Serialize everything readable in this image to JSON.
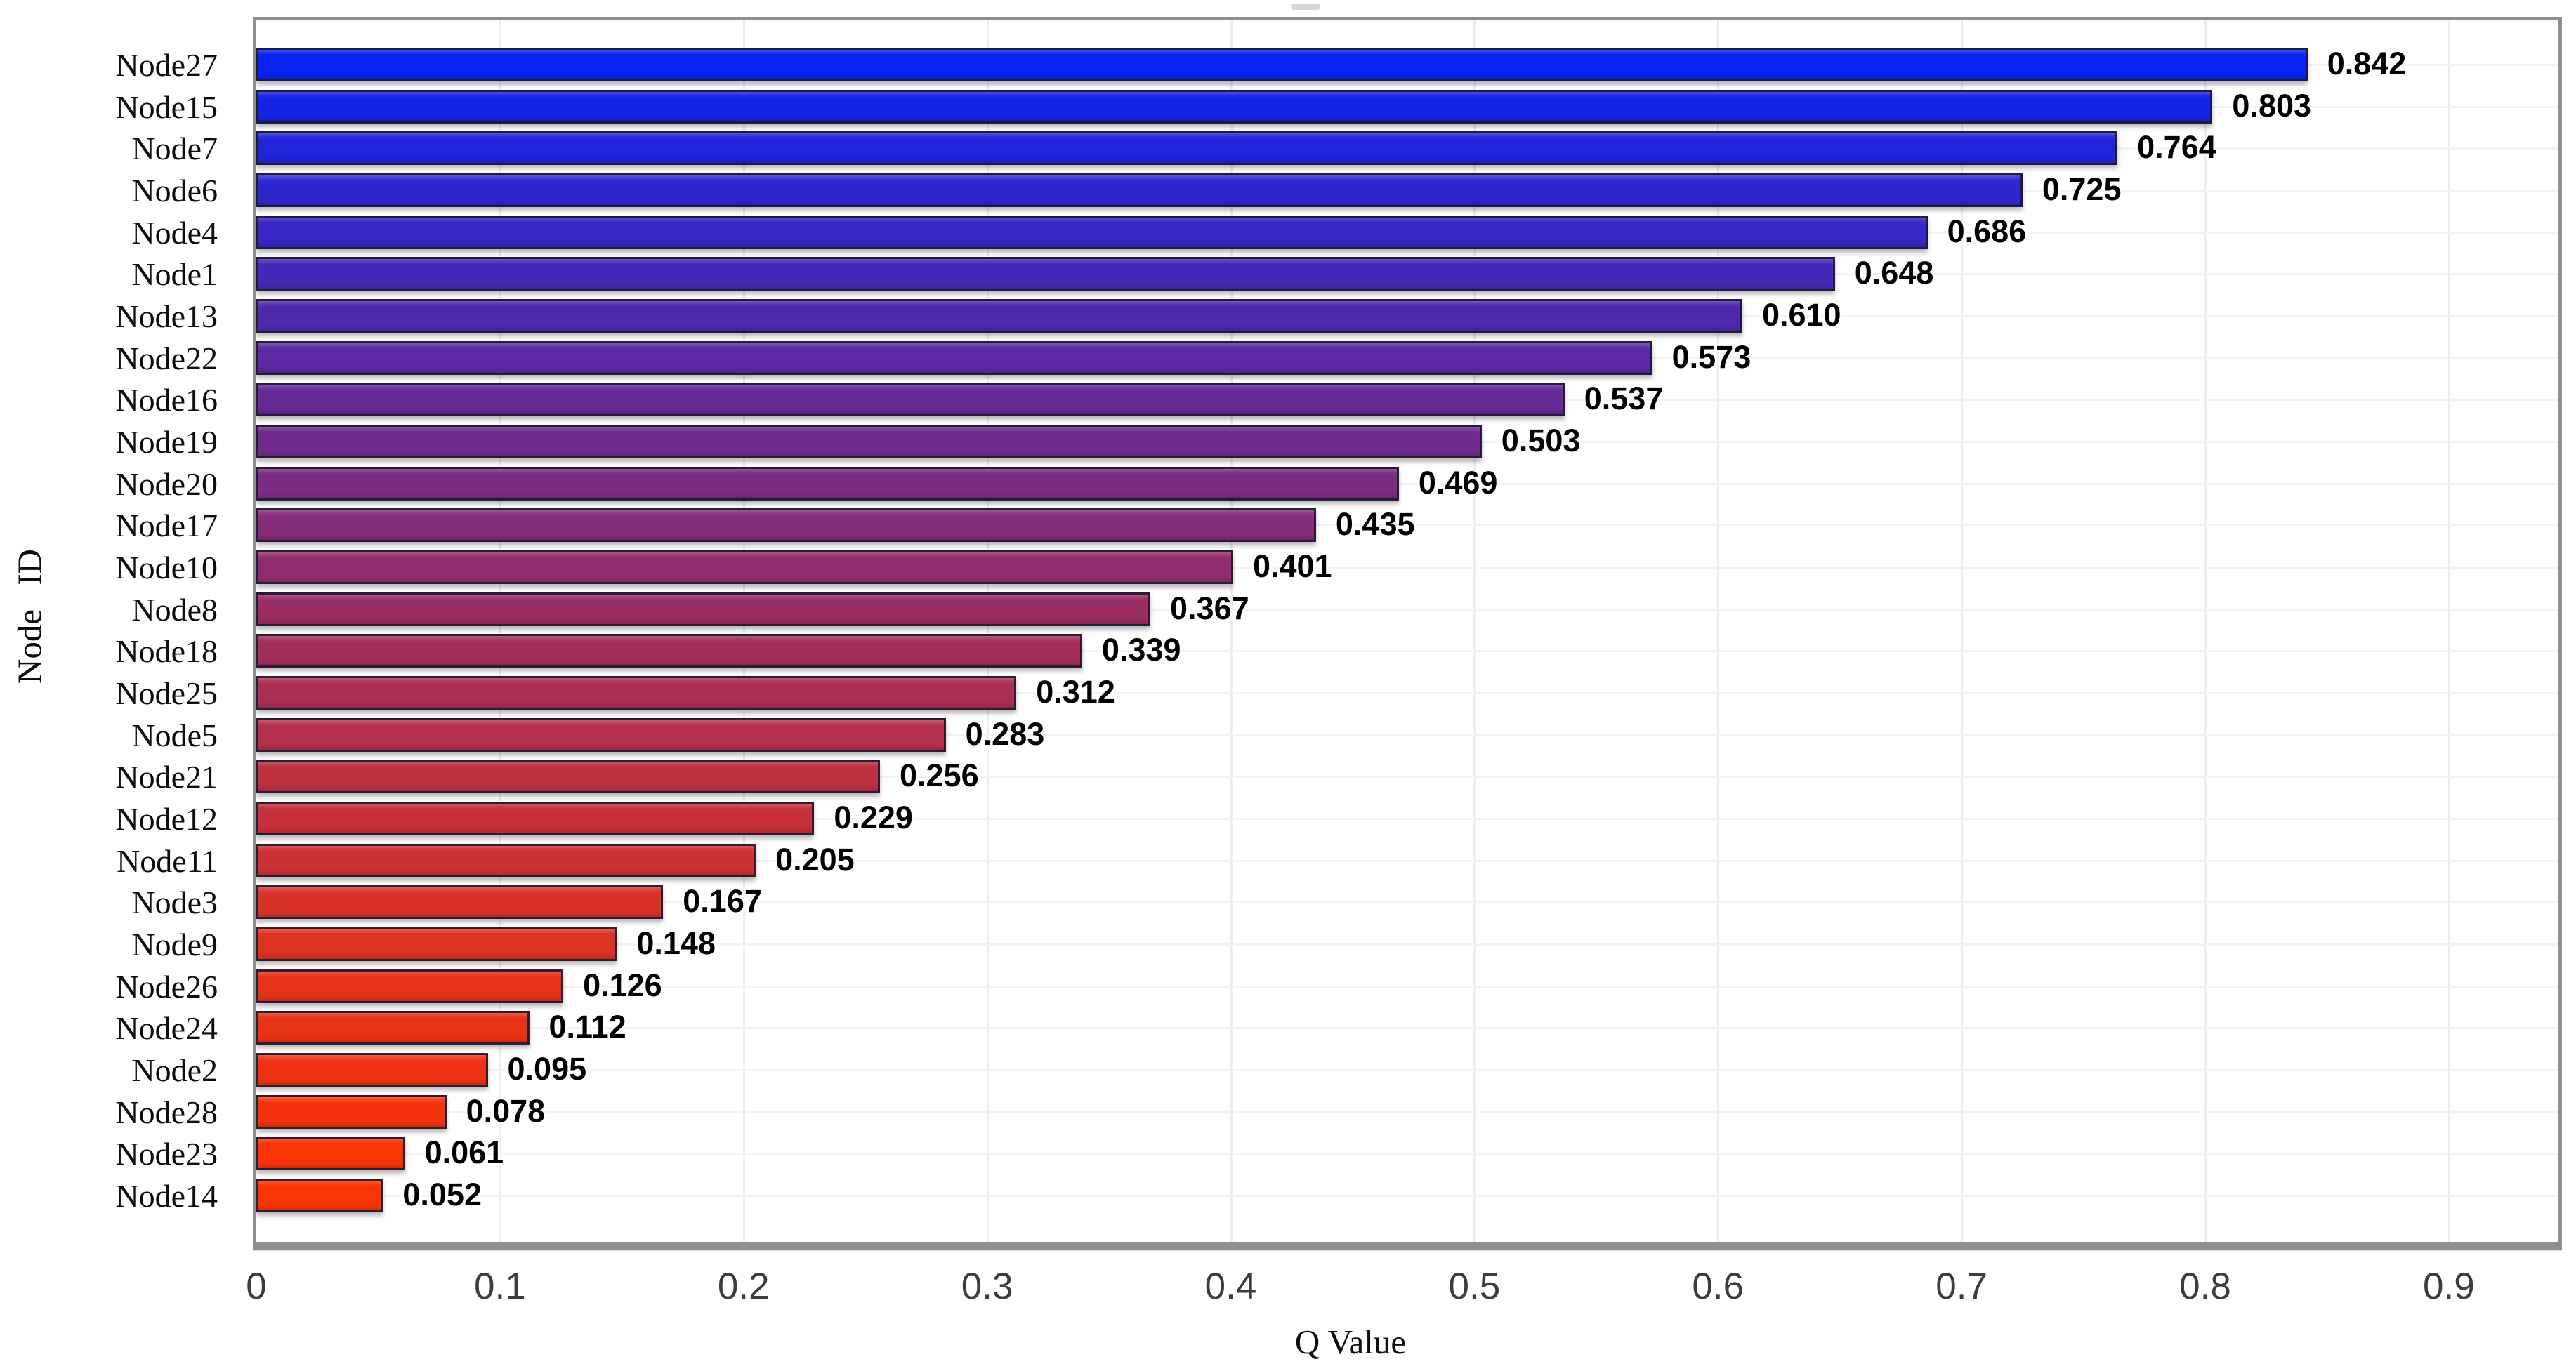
{
  "chart_data": {
    "type": "bar",
    "orientation": "horizontal",
    "title": "",
    "xlabel": "Q Value",
    "ylabel": "Node ID",
    "xlim": [
      0,
      0.945
    ],
    "x_ticks": [
      "0",
      "0.1",
      "0.2",
      "0.3",
      "0.4",
      "0.5",
      "0.6",
      "0.7",
      "0.8",
      "0.9"
    ],
    "grid": true,
    "legend": false,
    "bars_sorted": "descending",
    "value_label_decimals": 3,
    "categories": [
      "Node27",
      "Node15",
      "Node7",
      "Node6",
      "Node4",
      "Node1",
      "Node13",
      "Node22",
      "Node16",
      "Node19",
      "Node20",
      "Node17",
      "Node10",
      "Node8",
      "Node18",
      "Node25",
      "Node5",
      "Node21",
      "Node12",
      "Node11",
      "Node3",
      "Node9",
      "Node26",
      "Node24",
      "Node2",
      "Node28",
      "Node23",
      "Node14"
    ],
    "values": [
      0.842,
      0.803,
      0.764,
      0.725,
      0.686,
      0.648,
      0.61,
      0.573,
      0.537,
      0.503,
      0.469,
      0.435,
      0.401,
      0.367,
      0.339,
      0.312,
      0.283,
      0.256,
      0.229,
      0.205,
      0.167,
      0.148,
      0.126,
      0.112,
      0.095,
      0.078,
      0.061,
      0.052
    ],
    "colors": {
      "gradient_high_value": "#0823F2",
      "gradient_low_value": "#FB3405",
      "bar_edge": "#1C1830",
      "plot_border": "#8F8F8F",
      "grid_line_vertical": "#EDEDED",
      "grid_line_horizontal": "#F3F3F3",
      "tick_label": "#3C3C3C",
      "text": "#0D0D0D",
      "background": "#FFFFFF"
    }
  }
}
